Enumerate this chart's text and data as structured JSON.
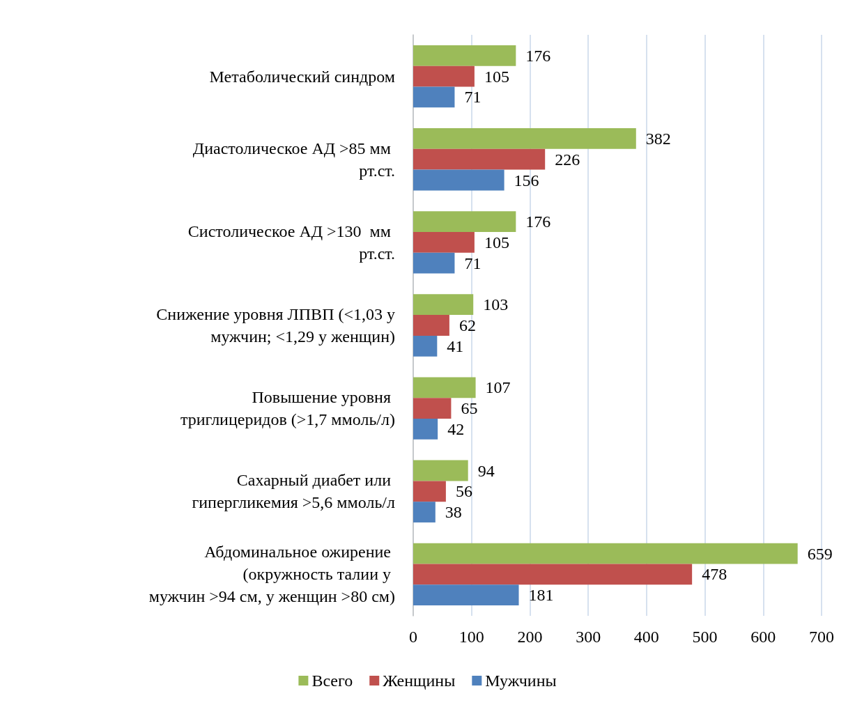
{
  "chart_data": {
    "type": "bar",
    "orientation": "horizontal",
    "categories": [
      "Метаболический синдром",
      "Диастолическое АД >85 мм рт.ст.",
      "Систолическое АД >130  мм рт.ст.",
      "Снижение уровня ЛПВП (<1,03 у мужчин; <1,29 у женщин)",
      "Повышение уровня триглицеридов (>1,7 ммоль/л)",
      "Сахарный диабет или гипергликемия >5,6 ммоль/л",
      "Абдоминальное ожирение (окружность талии у мужчин >94 см, у женщин >80 см)"
    ],
    "series": [
      {
        "name": "Всего",
        "color": "#9bbb59",
        "values": [
          176,
          382,
          176,
          103,
          107,
          94,
          659
        ]
      },
      {
        "name": "Женщины",
        "color": "#c0504d",
        "values": [
          105,
          226,
          105,
          62,
          65,
          56,
          478
        ]
      },
      {
        "name": "Мужчины",
        "color": "#4f81bd",
        "values": [
          71,
          156,
          71,
          41,
          42,
          38,
          181
        ]
      }
    ],
    "xlim": [
      0,
      700
    ],
    "xticks": [
      0,
      100,
      200,
      300,
      400,
      500,
      600,
      700
    ],
    "grid": "x",
    "legend": "bottom",
    "data_labels": true
  }
}
